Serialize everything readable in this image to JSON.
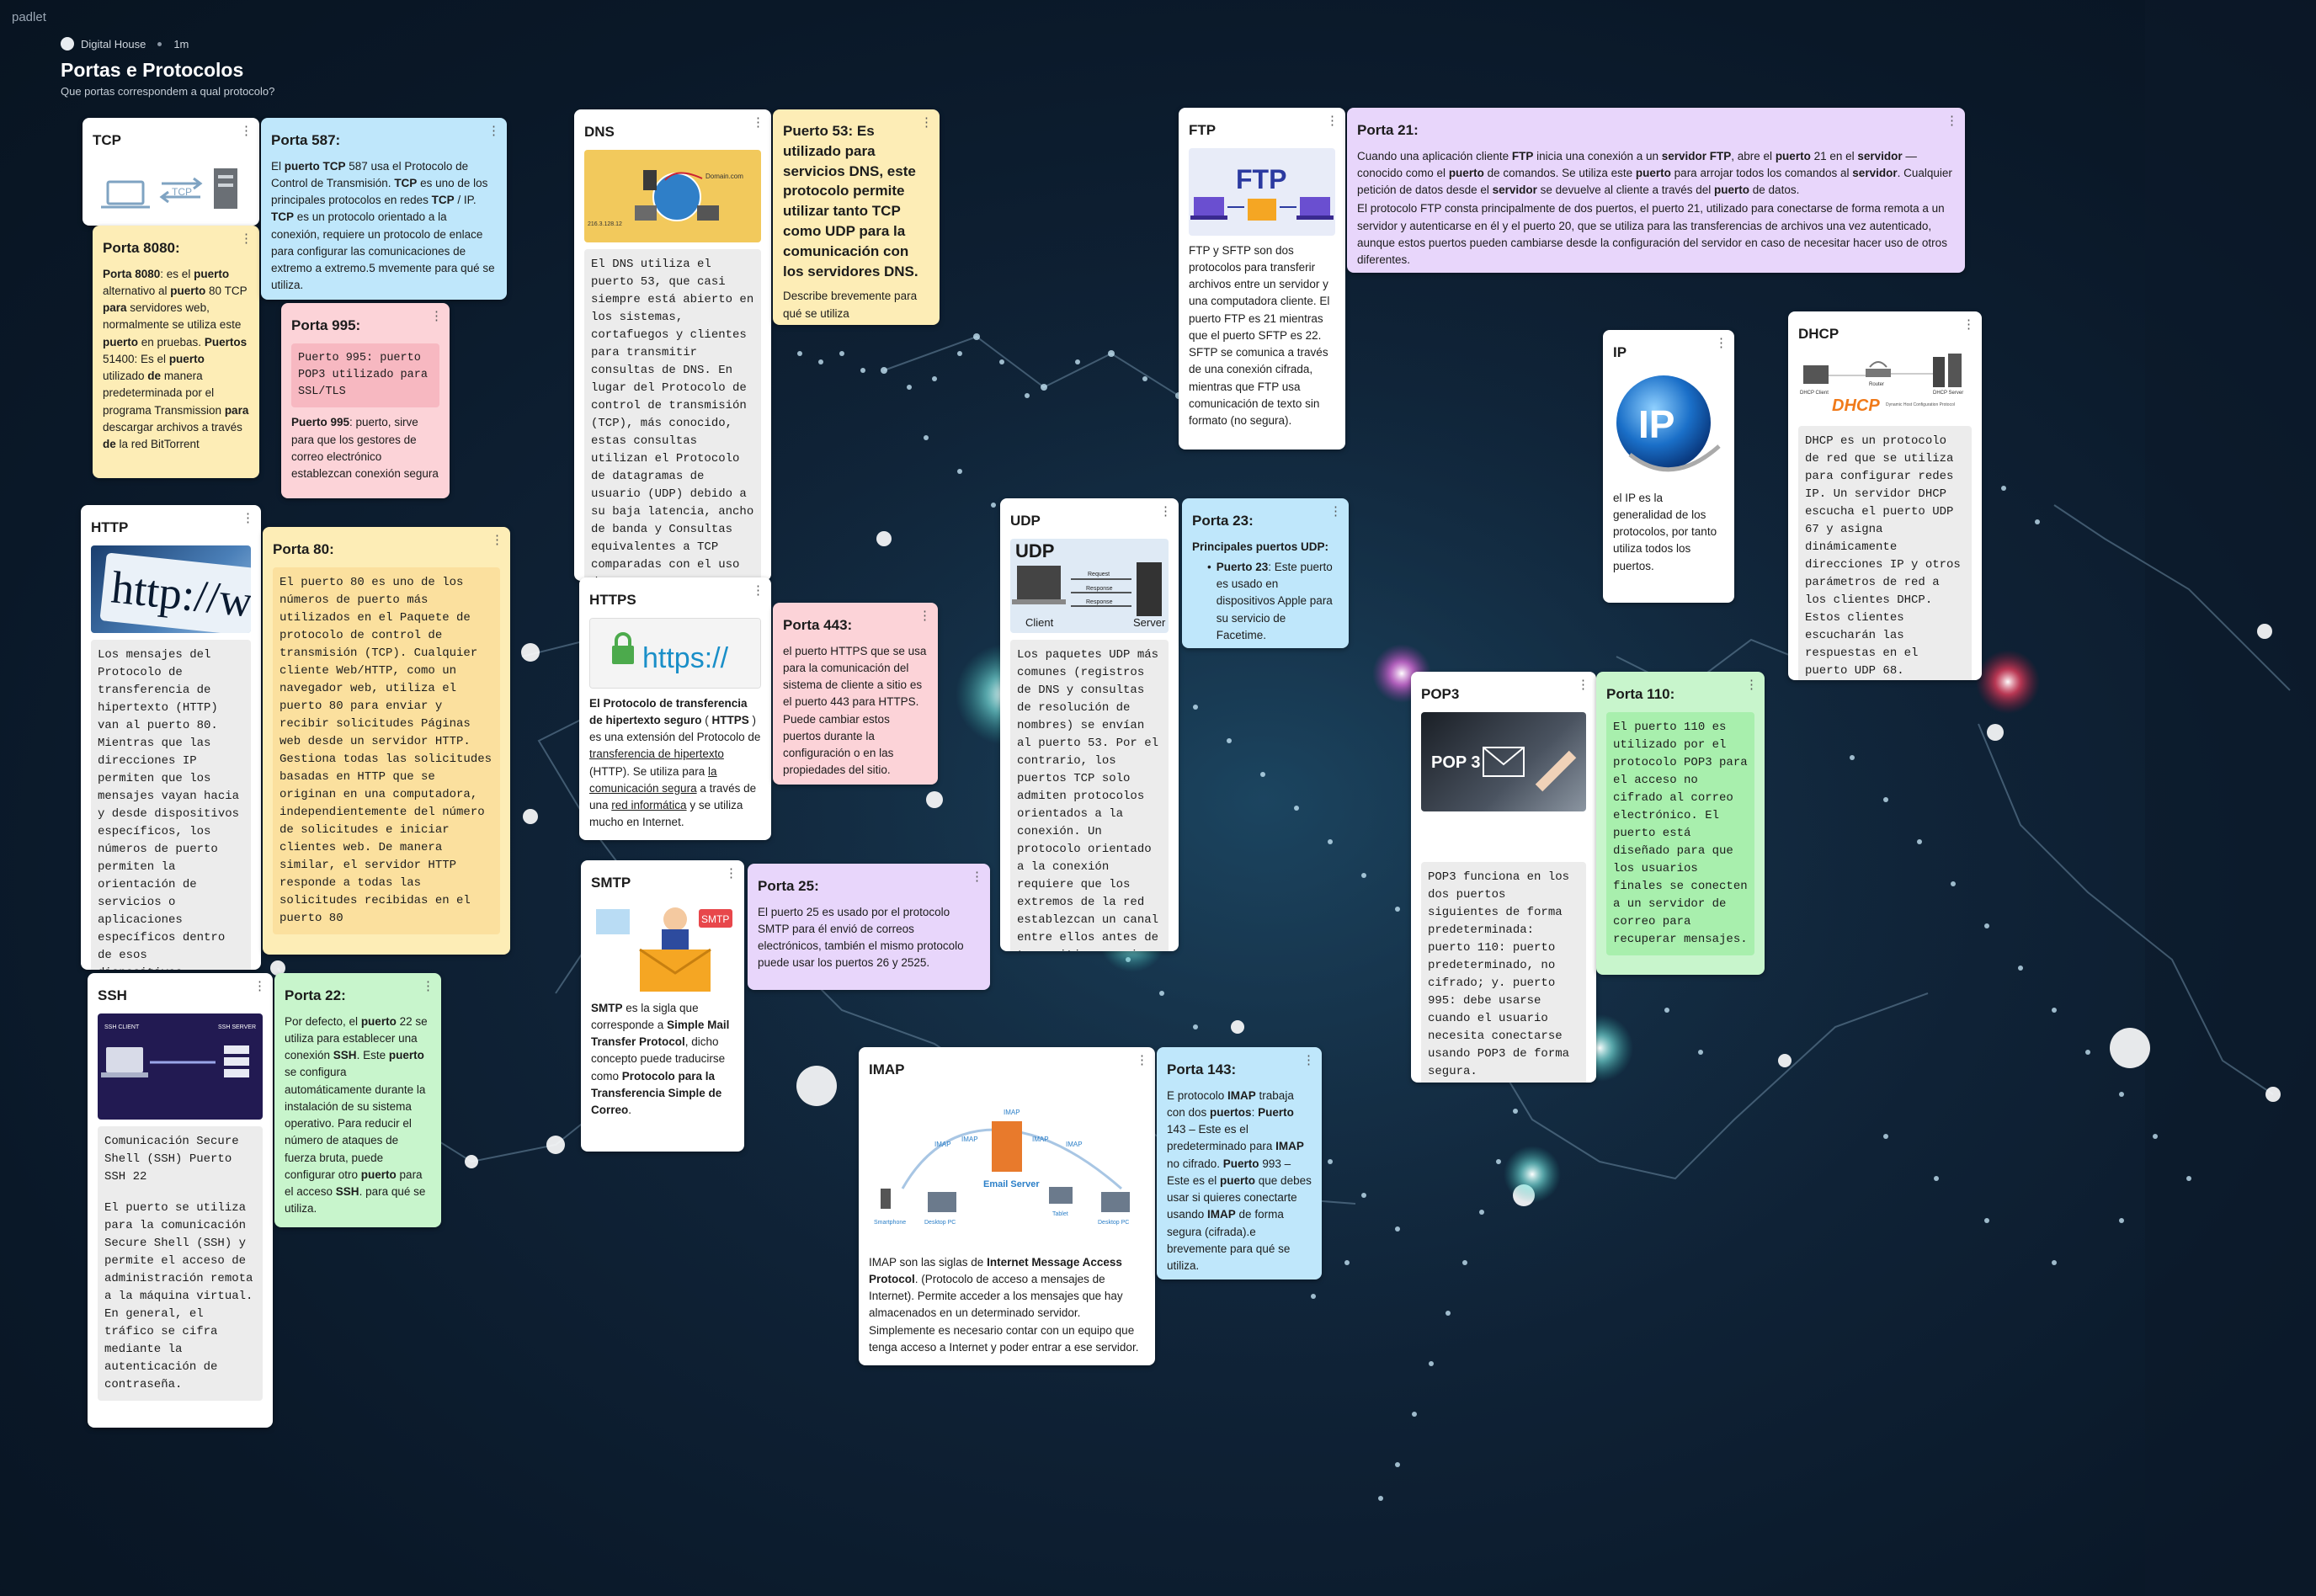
{
  "app": {
    "brand": "padlet"
  },
  "header": {
    "org": "Digital House",
    "time": "1m",
    "title": "Portas e Protocolos",
    "subtitle": "Que portas correspondem a qual protocolo?"
  },
  "cards": {
    "tcp": {
      "title": "TCP",
      "img_text": "TCP"
    },
    "porta587": {
      "title": "Porta 587:",
      "t1": "El ",
      "b1": "puerto TCP",
      "t2": " 587 usa el Protocolo de Control de Transmisión. ",
      "b2": "TCP",
      "t3": " es uno de los principales protocolos en redes ",
      "b3": "TCP",
      "t4": " / IP. ",
      "b4": "TCP",
      "t5": " es un protocolo orientado a la conexión, requiere un protocolo de enlace para configurar las comunicaciones de extremo a extremo.5 mvemente para qué se utiliza."
    },
    "porta8080": {
      "title": "Porta 8080:",
      "b1": "Porta 8080",
      "t1": ": es el ",
      "b2": "puerto",
      "t2": " alternativo al ",
      "b3": "puerto",
      "t3": " 80 TCP ",
      "b4": "para",
      "t4": " servidores web, normalmente se utiliza este ",
      "b5": "puerto",
      "t5": " en pruebas. ",
      "b6": "Puertos",
      "t6": " 51400: Es el ",
      "b7": "puerto",
      "t7": " utilizado ",
      "b8": "de",
      "t8": " manera predeterminada por el programa Transmission ",
      "b9": "para",
      "t9": " descargar archivos a través ",
      "b10": "de",
      "t10": " la red BitTorrent"
    },
    "porta995": {
      "title": "Porta 995:",
      "box": "Puerto 995: puerto POP3 utilizado para SSL/TLS",
      "b1": "Puerto 995",
      "t1": ": puerto, sirve para que los gestores de correo electrónico establezcan conexión segura"
    },
    "http": {
      "title": "HTTP",
      "img_text": "http://ww",
      "text": "Los mensajes del Protocolo de transferencia de hipertexto (HTTP) van al puerto 80. Mientras que las direcciones IP permiten que los mensajes vayan hacia y desde dispositivos específicos, los números de puerto permiten la orientación de servicios o aplicaciones específicos dentro de esos dispositivos."
    },
    "porta80": {
      "title": "Porta 80:",
      "text": "El puerto 80 es uno de los números de puerto más utilizados en el Paquete de protocolo de control de transmisión (TCP). Cualquier cliente Web/HTTP, como un navegador web, utiliza el puerto 80 para enviar y recibir solicitudes Páginas web desde un servidor HTTP. Gestiona todas las solicitudes basadas en HTTP que se originan en una computadora, independientemente del número de solicitudes e iniciar clientes web. De manera similar, el servidor HTTP responde a todas las solicitudes recibidas en el puerto 80"
    },
    "ssh": {
      "title": "SSH",
      "img_left": "SSH CLIENT",
      "img_right": "SSH SERVER",
      "text1": "Comunicación Secure Shell (SSH) Puerto SSH 22",
      "text2": "El puerto se utiliza para la comunicación Secure Shell (SSH) y permite el acceso de administración remota a la máquina virtual. En general, el tráfico se cifra mediante la autenticación de contraseña."
    },
    "porta22": {
      "title": "Porta 22:",
      "t1": "Por defecto, el ",
      "b1": "puerto",
      "t2": " 22 se utiliza para establecer una conexión ",
      "b2": "SSH",
      "t3": ". Este ",
      "b3": "puerto",
      "t4": " se configura automáticamente durante la instalación de su sistema operativo. Para reducir el número de ataques de fuerza bruta, puede configurar otro ",
      "b4": "puerto",
      "t5": " para el acceso ",
      "b5": "SSH",
      "t6": ". para qué se utiliza."
    },
    "dns": {
      "title": "DNS",
      "img_a": "Domain.com",
      "img_b": "216.3.128.12",
      "text": "El DNS utiliza el puerto 53, que casi siempre está abierto en los sistemas, cortafuegos y clientes para transmitir consultas de DNS. En lugar del Protocolo de control de transmisión (TCP), más conocido, estas consultas utilizan el Protocolo de datagramas de usuario (UDP) debido a su baja latencia, ancho de banda y Consultas equivalentes a TCP comparadas con el uso de recursos"
    },
    "porta53": {
      "title": "Puerto 53: Es utilizado para servicios DNS, este protocolo permite utilizar tanto TCP como UDP para la comunicación con los servidores DNS.",
      "text": "Describe brevemente para qué se utiliza"
    },
    "https": {
      "title": "HTTPS",
      "img_text": "https://",
      "b1": "El Protocolo de transferencia de hipertexto seguro",
      "t1": " ( ",
      "b2": "HTTPS",
      "t2": " ) es una extensión del Protocolo de ",
      "u1": "transferencia de hipertexto",
      "t3": " (HTTP). Se utiliza para ",
      "u2": "la comunicación segura",
      "t4": " a través de una ",
      "u3": "red informática",
      "t5": " y se utiliza mucho en Internet."
    },
    "porta443": {
      "title": "Porta 443:",
      "text": "el puerto HTTPS que se usa para la comunicación del sistema de cliente a sitio es el puerto 443 para HTTPS. Puede cambiar estos puertos durante la configuración o en las propiedades del sitio."
    },
    "smtp": {
      "title": "SMTP",
      "img_text": "SMTP",
      "b1": "SMTP",
      "t1": " es la sigla que corresponde a ",
      "b2": "Simple Mail Transfer Protocol",
      "t2": ", dicho concepto puede traducirse como ",
      "b3": "Protocolo para la Transferencia Simple de Correo",
      "t3": "."
    },
    "porta25": {
      "title": "Porta 25:",
      "text": "El puerto 25 es usado por el protocolo SMTP para él envió de correos electrónicos, también el mismo protocolo puede usar los puertos 26 y 2525."
    },
    "udp": {
      "title": "UDP",
      "img_title": "UDP",
      "img_client": "Client",
      "img_server": "Server",
      "img_req1": "Request",
      "img_resp1": "Response",
      "img_resp2": "Response",
      "text": "Los paquetes UDP más comunes (registros de DNS y consultas de resolución de nombres) se envían al puerto 53. Por el contrario, los puertos TCP solo admiten protocolos orientados a la conexión. Un protocolo orientado a la conexión requiere que los extremos de la red establezcan un canal entre ellos antes de transmitir mensajes."
    },
    "porta23": {
      "title": "Porta 23:",
      "sub": "Principales puertos UDP:",
      "b1": "Puerto 23",
      "t1": ": Este puerto es usado en dispositivos Apple para su servicio de Facetime."
    },
    "imap": {
      "title": "IMAP",
      "img_server": "Email Server",
      "img_labels": [
        "IMAP",
        "IMAP",
        "IMAP",
        "IMAP",
        "IMAP"
      ],
      "img_devices": [
        "Smartphone",
        "Desktop PC",
        "Tablet",
        "Desktop PC"
      ],
      "t1": "IMAP son las siglas de ",
      "b1": "Internet Message Access Protocol",
      "t2": ". (Protocolo de acceso a mensajes de Internet). Permite acceder a los mensajes que hay almacenados en un determinado servidor. Simplemente es necesario contar con un equipo que tenga acceso a Internet y poder entrar a ese servidor."
    },
    "porta143": {
      "title": "Porta 143:",
      "t1": "E protocolo ",
      "b1": "IMAP",
      "t2": " trabaja con dos ",
      "b2": "puertos",
      "t3": ": ",
      "b3": "Puerto",
      "t4": " 143 – Este es el predeterminado para ",
      "b4": "IMAP",
      "t5": " no cifrado. ",
      "b5": "Puerto",
      "t6": " 993 – Este es el ",
      "b6": "puerto",
      "t7": " que debes usar si quieres conectarte usando ",
      "b7": "IMAP",
      "t8": " de forma segura (cifrada).e brevemente para qué se utiliza."
    },
    "ftp": {
      "title": "FTP",
      "img_text": "FTP",
      "text": "FTP y SFTP son dos protocolos para transferir archivos entre un servidor y una computadora cliente. El puerto FTP es 21 mientras que el puerto SFTP es 22. SFTP se comunica a través de una conexión cifrada, mientras que FTP usa comunicación de texto sin formato (no segura)."
    },
    "porta21": {
      "title": "Porta 21:",
      "t1": "Cuando una aplicación cliente ",
      "b1": "FTP",
      "t2": " inicia una conexión a un ",
      "b2": "servidor FTP",
      "t3": ", abre el ",
      "b3": "puerto",
      "t4": " 21 en el ",
      "b4": "servidor",
      "t5": " — conocido como el ",
      "b5": "puerto",
      "t6": " de comandos. Se utiliza este ",
      "b6": "puerto",
      "t7": " para arrojar todos los comandos al ",
      "b7": "servidor",
      "t8": ". Cualquier petición de datos desde el ",
      "b8": "servidor",
      "t9": " se devuelve al cliente a través del ",
      "b9": "puerto",
      "t10": " de datos.",
      "p2": "El protocolo FTP consta principalmente de dos puertos, el puerto 21, utilizado para conectarse de forma remota a un servidor y autenticarse en él y el puerto 20, que se utiliza para las transferencias de archivos una vez autenticado, aunque estos puertos pueden cambiarse desde la configuración del servidor en caso de necesitar hacer uso de otros diferentes."
    },
    "ip": {
      "title": "IP",
      "img_text": "IP",
      "text": "el IP es la generalidad de los protocolos, por tanto utiliza todos los puertos."
    },
    "dhcp": {
      "title": "DHCP",
      "img_text": "DHCP",
      "img_sub": "Dynamic Host Configuration Protocol",
      "img_client": "DHCP Client",
      "img_router": "Router",
      "img_server": "DHCP Server",
      "text": "DHCP es un protocolo de red que se utiliza para configurar redes IP. Un servidor DHCP escucha el puerto UDP 67 y asigna dinámicamente direcciones IP y otros parámetros de red a los clientes DHCP. Estos clientes escucharán las respuestas en el puerto UDP 68."
    },
    "pop3": {
      "title": "POP3",
      "img_text": "POP 3",
      "text": "POP3 funciona en los dos puertos siguientes de forma predeterminada: puerto 110: puerto predeterminado, no cifrado; y. puerto 995: debe usarse cuando el usuario necesita conectarse usando POP3 de forma segura."
    },
    "porta110": {
      "title": "Porta 110:",
      "text": "El puerto 110 es utilizado por el protocolo POP3 para el acceso no cifrado al correo electrónico. El puerto está diseñado para que los usuarios finales se conecten a un servidor de correo para recuperar mensajes."
    }
  },
  "icons": {
    "kebab": "⋮"
  }
}
